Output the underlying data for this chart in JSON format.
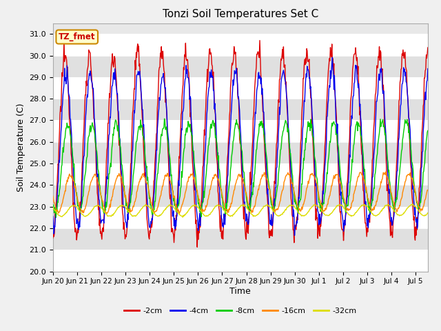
{
  "title": "Tonzi Soil Temperatures Set C",
  "xlabel": "Time",
  "ylabel": "Soil Temperature (C)",
  "ylim": [
    20.0,
    31.5
  ],
  "yticks": [
    20.0,
    21.0,
    22.0,
    23.0,
    24.0,
    25.0,
    26.0,
    27.0,
    28.0,
    29.0,
    30.0,
    31.0
  ],
  "series_order": [
    "-2cm",
    "-4cm",
    "-8cm",
    "-16cm",
    "-32cm"
  ],
  "series": {
    "-2cm": {
      "color": "#dd0000",
      "lw": 1.0,
      "amp": 4.2,
      "base": 25.8,
      "phase": 0.0,
      "trend": 0.12
    },
    "-4cm": {
      "color": "#0000ee",
      "lw": 1.0,
      "amp": 3.5,
      "base": 25.6,
      "phase": 0.25,
      "trend": 0.1
    },
    "-8cm": {
      "color": "#00cc00",
      "lw": 1.0,
      "amp": 2.0,
      "base": 24.8,
      "phase": 0.7,
      "trend": 0.08
    },
    "-16cm": {
      "color": "#ff8800",
      "lw": 1.0,
      "amp": 0.85,
      "base": 23.6,
      "phase": 1.4,
      "trend": 0.05
    },
    "-32cm": {
      "color": "#dddd00",
      "lw": 1.0,
      "amp": 0.25,
      "base": 22.8,
      "phase": 2.2,
      "trend": 0.02
    }
  },
  "annotation_text": "TZ_fmet",
  "annotation_color": "#cc0000",
  "annotation_bg": "#ffffcc",
  "annotation_border": "#cc8800",
  "fig_facecolor": "#f0f0f0",
  "axes_facecolor": "#e8e8e8",
  "n_days": 15.5,
  "samples_per_day": 48,
  "x_tick_labels": [
    "Jun 20",
    "Jun 21",
    "Jun 22",
    "Jun 23",
    "Jun 24",
    "Jun 25",
    "Jun 26",
    "Jun 27",
    "Jun 28",
    "Jun 29",
    "Jun 30",
    "Jul 1",
    "Jul 2",
    "Jul 3",
    "Jul 4",
    "Jul 5"
  ],
  "legend_labels": [
    "-2cm",
    "-4cm",
    "-8cm",
    "-16cm",
    "-32cm"
  ],
  "legend_colors": [
    "#dd0000",
    "#0000ee",
    "#00cc00",
    "#ff8800",
    "#dddd00"
  ]
}
